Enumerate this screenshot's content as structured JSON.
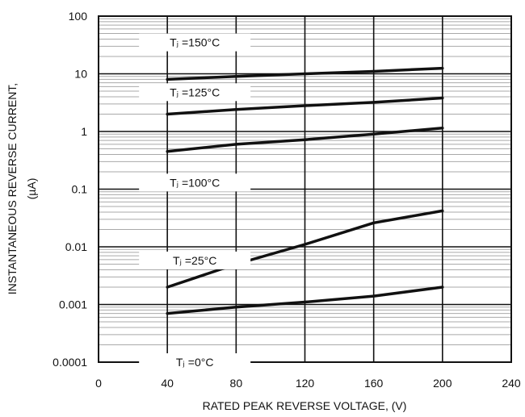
{
  "chart_data": {
    "type": "line",
    "xlabel": "RATED PEAK REVERSE VOLTAGE, (V)",
    "ylabel": [
      "INSTANTANEOUS REVERSE CURRENT,",
      "(µA)"
    ],
    "xlim": [
      0,
      240
    ],
    "ylim": [
      0.0001,
      100
    ],
    "yscale": "log",
    "grid": true,
    "x_ticks": [
      0,
      40,
      80,
      120,
      160,
      200,
      240
    ],
    "x_tick_labels": [
      "0",
      "40",
      "80",
      "120",
      "160",
      "200",
      "240"
    ],
    "y_ticks": [
      0.0001,
      0.001,
      0.01,
      0.1,
      1,
      10,
      100
    ],
    "y_tick_labels": [
      "0.0001",
      "0.001",
      "0.01",
      "0.1",
      "1",
      "10",
      "100"
    ],
    "series": [
      {
        "name": "Tⱼ =150°C",
        "x": [
          40,
          80,
          120,
          160,
          200
        ],
        "y": [
          8,
          9,
          10,
          11,
          12.5
        ]
      },
      {
        "name": "Tⱼ =125°C",
        "x": [
          40,
          80,
          120,
          160,
          200
        ],
        "y": [
          2,
          2.4,
          2.8,
          3.2,
          3.8
        ]
      },
      {
        "name": "Tⱼ =100°C",
        "x": [
          40,
          80,
          120,
          160,
          200
        ],
        "y": [
          0.45,
          0.6,
          0.72,
          0.9,
          1.15
        ]
      },
      {
        "name": "Tⱼ =25°C",
        "x": [
          40,
          80,
          120,
          160,
          200
        ],
        "y": [
          0.002,
          0.005,
          0.011,
          0.026,
          0.042
        ]
      },
      {
        "name": "Tⱼ =0°C",
        "x": [
          40,
          80,
          120,
          160,
          200
        ],
        "y": [
          0.0007,
          0.0009,
          0.0011,
          0.0014,
          0.002
        ]
      }
    ],
    "series_labels": [
      {
        "text": "Tⱼ =150°C",
        "x": 40,
        "y": 35
      },
      {
        "text": "Tⱼ =125°C",
        "x": 40,
        "y": 4.8
      },
      {
        "text": "Tⱼ =100°C",
        "x": 40,
        "y": 0.13
      },
      {
        "text": "Tⱼ =25°C",
        "x": 40,
        "y": 0.0058
      },
      {
        "text": "Tⱼ =0°C",
        "x": 40,
        "y": 0.0001
      }
    ]
  }
}
